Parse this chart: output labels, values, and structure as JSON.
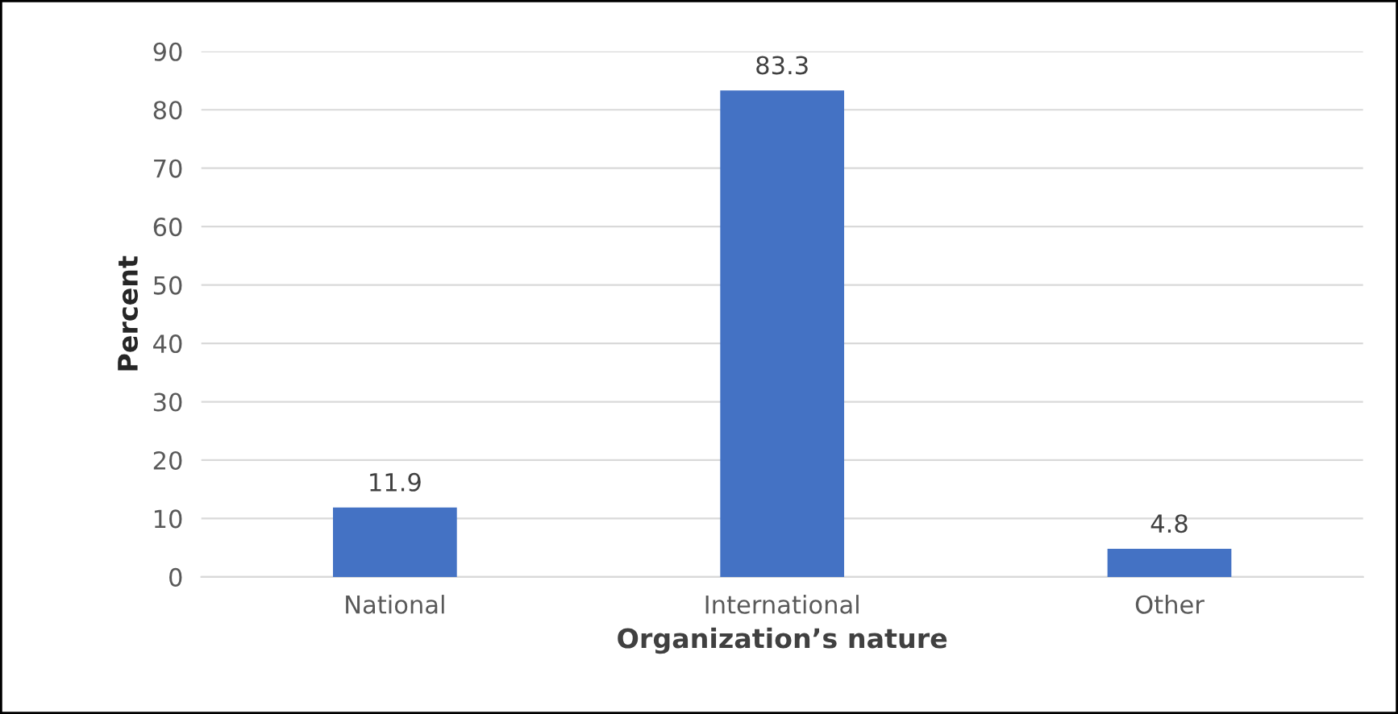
{
  "chart_data": {
    "type": "bar",
    "xlabel": "Organization’s nature",
    "ylabel": "Percent",
    "categories": [
      "National",
      "International",
      "Other"
    ],
    "values": [
      11.9,
      83.3,
      4.8
    ],
    "color": "#4472c4",
    "ylim": [
      0,
      90
    ],
    "yticks": [
      0,
      10,
      20,
      30,
      40,
      50,
      60,
      70,
      80,
      90
    ],
    "grid": "y",
    "data_labels": true
  }
}
